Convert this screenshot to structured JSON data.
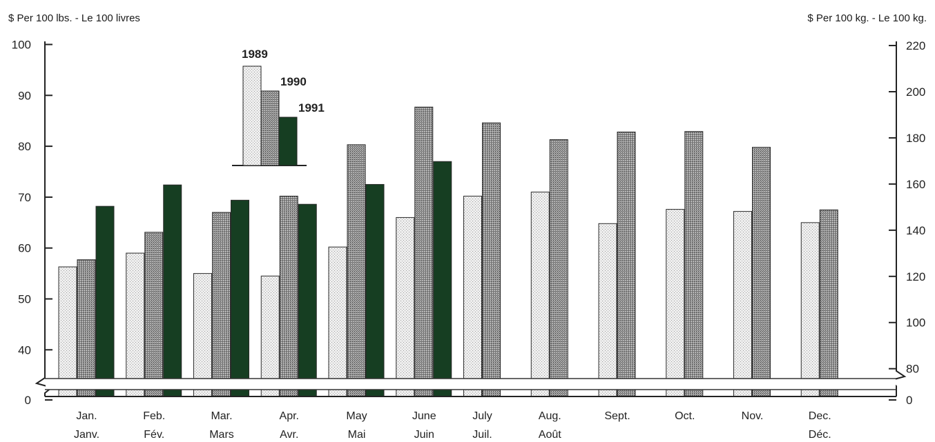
{
  "chart_data": {
    "type": "bar",
    "title": "",
    "left_axis_label": "$ Per 100 lbs. - Le 100 livres",
    "right_axis_label": "$ Per 100 kg. - Le 100 kg.",
    "categories_en": [
      "Jan.",
      "Feb.",
      "Mar.",
      "Apr.",
      "May",
      "June",
      "July",
      "Aug.",
      "Sept.",
      "Oct.",
      "Nov.",
      "Dec."
    ],
    "categories_fr": [
      "Janv.",
      "Fév.",
      "Mars",
      "Avr.",
      "Mai",
      "Juin",
      "Juil.",
      "Août",
      "",
      "",
      "",
      "Déc."
    ],
    "left_ticks": [
      0,
      40,
      50,
      60,
      70,
      80,
      90,
      100
    ],
    "right_ticks": [
      0,
      80,
      100,
      120,
      140,
      160,
      180,
      200,
      220
    ],
    "ylim": [
      35,
      100
    ],
    "axis_break": true,
    "series": [
      {
        "name": "1989",
        "values": [
          56.3,
          59.0,
          55.0,
          54.5,
          60.2,
          66.0,
          70.2,
          71.0,
          64.8,
          67.6,
          67.2,
          65.0
        ],
        "color": "#e6e6e6"
      },
      {
        "name": "1990",
        "values": [
          57.7,
          63.1,
          67.0,
          70.2,
          80.3,
          87.7,
          84.6,
          81.3,
          82.8,
          82.9,
          79.8,
          67.5
        ],
        "color": "#8a8a8a"
      },
      {
        "name": "1991",
        "values": [
          68.2,
          72.4,
          69.4,
          68.6,
          72.5,
          77.0,
          null,
          null,
          null,
          null,
          null,
          null
        ],
        "color": "#123a1e"
      }
    ]
  }
}
